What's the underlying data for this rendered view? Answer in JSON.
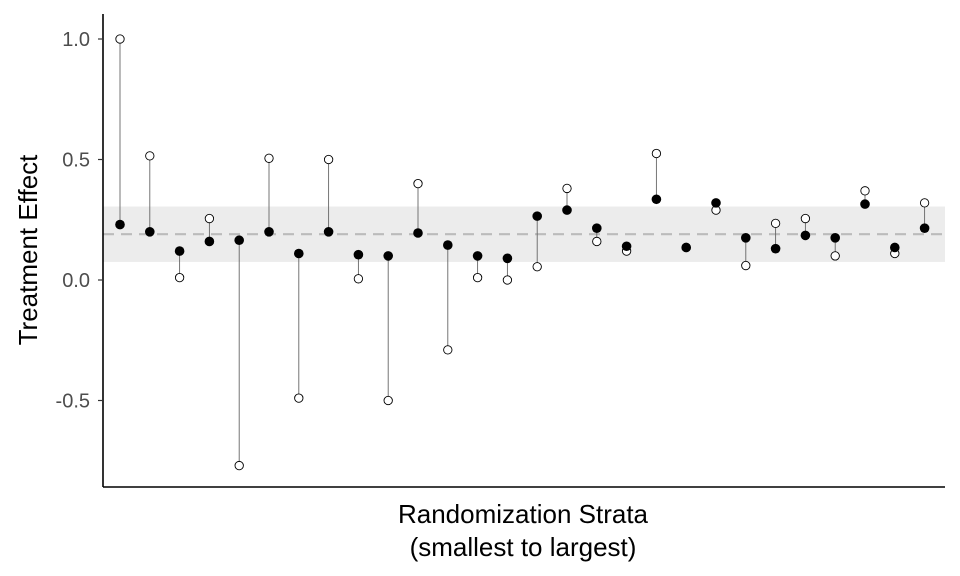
{
  "chart_data": {
    "type": "scatter",
    "title": "",
    "xlabel_line1": "Randomization Strata",
    "xlabel_line2": "(smallest to largest)",
    "ylabel": "Treatment Effect",
    "ylim": [
      -0.85,
      1.1
    ],
    "yticks": [
      1.0,
      0.5,
      0.0,
      -0.5
    ],
    "ytick_labels": [
      "1.0",
      "0.5",
      "0.0",
      "-0.5"
    ],
    "grid": false,
    "legend": "none",
    "pooled_estimate": 0.19,
    "pooled_band": [
      0.075,
      0.305
    ],
    "series": [
      {
        "marker": "open-circle",
        "values": [
          1.0,
          0.515,
          0.01,
          0.255,
          -0.77,
          0.505,
          -0.49,
          0.5,
          0.005,
          -0.5,
          0.4,
          -0.29,
          0.01,
          0.0,
          0.055,
          0.38,
          0.16,
          0.12,
          0.525,
          0.135,
          0.29,
          0.06,
          0.235,
          0.255,
          0.1,
          0.37,
          0.11,
          0.32
        ]
      },
      {
        "marker": "filled-circle",
        "values": [
          0.23,
          0.2,
          0.12,
          0.16,
          0.165,
          0.2,
          0.11,
          0.2,
          0.105,
          0.1,
          0.195,
          0.145,
          0.1,
          0.09,
          0.265,
          0.29,
          0.215,
          0.14,
          0.335,
          0.135,
          0.32,
          0.175,
          0.13,
          0.185,
          0.175,
          0.315,
          0.135,
          0.215
        ]
      }
    ],
    "colors": {
      "band": "#ececec",
      "reference_line": "#bbbbbb",
      "segment": "#666666",
      "filled_marker": "#000000",
      "open_marker_fill": "#ffffff",
      "axis": "#000000"
    }
  }
}
